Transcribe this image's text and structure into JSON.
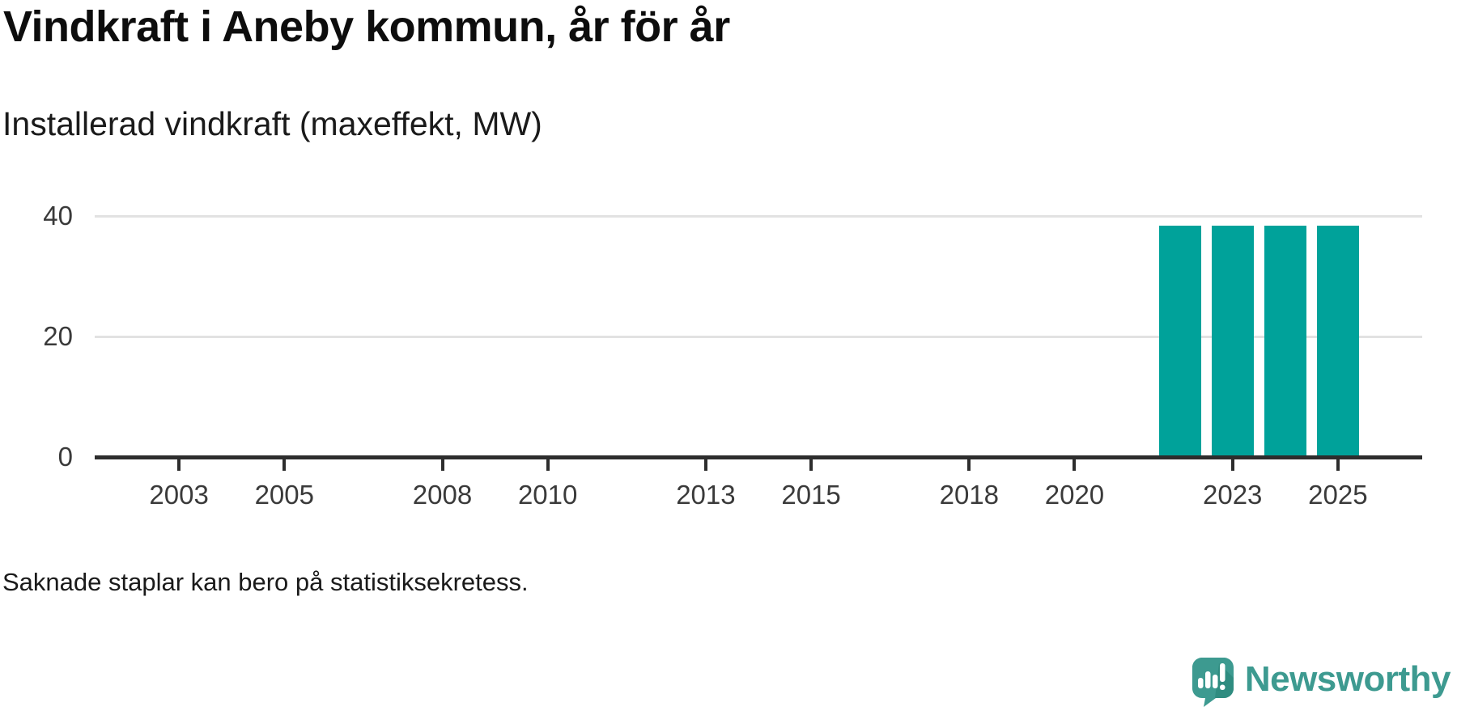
{
  "header": {
    "title": "Vindkraft i Aneby kommun, år för år",
    "subtitle": "Installerad vindkraft (maxeffekt, MW)"
  },
  "chart_data": {
    "type": "bar",
    "title": "Vindkraft i Aneby kommun, år för år",
    "ylabel": "Installerad vindkraft (maxeffekt, MW)",
    "unit": "MW",
    "x": [
      2022,
      2023,
      2024,
      2025
    ],
    "values": [
      38.4,
      38.4,
      38.4,
      38.4
    ],
    "missing_years_shown_empty": "2002-2021",
    "x_axis": {
      "range": [
        2001.4,
        2026.6
      ],
      "tick_years": [
        2003,
        2005,
        2008,
        2010,
        2013,
        2015,
        2018,
        2020,
        2023,
        2025
      ]
    },
    "y_axis": {
      "range": [
        0,
        44
      ],
      "tick_labels": [
        0,
        20,
        40
      ],
      "gridlines": [
        20,
        40
      ]
    },
    "grid": "horizontal-only",
    "legend": "none",
    "bar_width_years": 0.8
  },
  "footer": {
    "note": "Saknade staplar kan bero på statistiksekretess.",
    "brand": "Newsworthy"
  },
  "colors": {
    "bar": "#00a29a",
    "axis": "#2d2d2d",
    "gridline": "#e2e2e2",
    "title_text": "#0d0d0d",
    "tick_text": "#3a3a3a",
    "brand_teal": "#3d9a90",
    "brand_teal_shadow": "#2f8c80"
  },
  "icons": {
    "newsworthy-icon": "speech-bubble-with-bar-chart-and-exclamation"
  }
}
